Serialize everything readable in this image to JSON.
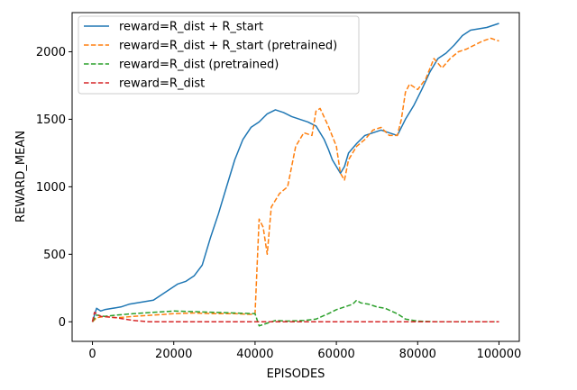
{
  "chart_data": {
    "type": "line",
    "title": "",
    "xlabel": "EPISODES",
    "ylabel": "REWARD_MEAN",
    "xlim": [
      -5000,
      105000
    ],
    "ylim": [
      -145,
      2290
    ],
    "xticks": [
      0,
      20000,
      40000,
      60000,
      80000,
      100000
    ],
    "xtick_labels": [
      "0",
      "20000",
      "40000",
      "60000",
      "80000",
      "100000"
    ],
    "yticks": [
      0,
      500,
      1000,
      1500,
      2000
    ],
    "ytick_labels": [
      "0",
      "500",
      "1000",
      "1500",
      "2000"
    ],
    "grid": false,
    "legend_position": "upper-left",
    "series": [
      {
        "name": "reward=R_dist + R_start",
        "color": "#1f77b4",
        "style": "solid",
        "x": [
          0,
          1000,
          2000,
          3000,
          5000,
          7000,
          9000,
          11000,
          13000,
          15000,
          17000,
          19000,
          21000,
          23000,
          25000,
          27000,
          29000,
          31000,
          33000,
          35000,
          37000,
          39000,
          41000,
          43000,
          45000,
          47000,
          49000,
          51000,
          53000,
          55000,
          57000,
          58000,
          59000,
          60000,
          61000,
          62000,
          63000,
          65000,
          67000,
          69000,
          71000,
          73000,
          75000,
          77000,
          79000,
          81000,
          83000,
          85000,
          87000,
          89000,
          91000,
          93000,
          95000,
          97000,
          99000,
          100000
        ],
        "y": [
          0,
          100,
          80,
          90,
          100,
          110,
          130,
          140,
          150,
          160,
          200,
          240,
          280,
          300,
          340,
          420,
          620,
          800,
          1000,
          1200,
          1350,
          1440,
          1480,
          1540,
          1570,
          1550,
          1520,
          1500,
          1480,
          1450,
          1350,
          1280,
          1200,
          1150,
          1100,
          1150,
          1250,
          1320,
          1380,
          1400,
          1420,
          1400,
          1380,
          1500,
          1600,
          1720,
          1850,
          1950,
          1990,
          2050,
          2120,
          2160,
          2170,
          2180,
          2200,
          2210
        ]
      },
      {
        "name": "reward=R_dist + R_start (pretrained)",
        "color": "#ff7f0e",
        "style": "dashed",
        "x": [
          0,
          1000,
          3000,
          6000,
          10000,
          15000,
          20000,
          25000,
          30000,
          35000,
          39000,
          40000,
          41000,
          42000,
          43000,
          44000,
          46000,
          48000,
          50000,
          51000,
          52000,
          54000,
          55000,
          56000,
          58000,
          60000,
          61000,
          62000,
          63000,
          65000,
          67000,
          69000,
          71000,
          73000,
          75000,
          76000,
          77000,
          78000,
          80000,
          82000,
          84000,
          86000,
          88000,
          90000,
          92000,
          94000,
          96000,
          98000,
          100000
        ],
        "y": [
          0,
          30,
          40,
          30,
          40,
          50,
          60,
          65,
          60,
          60,
          55,
          60,
          760,
          700,
          500,
          850,
          950,
          1000,
          1300,
          1350,
          1400,
          1380,
          1560,
          1580,
          1450,
          1300,
          1100,
          1050,
          1200,
          1300,
          1350,
          1420,
          1440,
          1380,
          1380,
          1500,
          1700,
          1760,
          1720,
          1800,
          1950,
          1880,
          1950,
          2000,
          2020,
          2050,
          2080,
          2100,
          2080
        ]
      },
      {
        "name": "reward=R_dist (pretrained)",
        "color": "#2ca02c",
        "style": "dashed",
        "x": [
          0,
          1000,
          3000,
          6000,
          10000,
          15000,
          20000,
          25000,
          30000,
          35000,
          40000,
          41000,
          42000,
          45000,
          48000,
          52000,
          55000,
          58000,
          60000,
          62000,
          64000,
          65000,
          66000,
          68000,
          70000,
          72000,
          75000,
          77000,
          80000,
          85000,
          90000,
          95000,
          100000
        ],
        "y": [
          0,
          50,
          40,
          50,
          60,
          70,
          80,
          75,
          70,
          65,
          60,
          -30,
          -20,
          10,
          5,
          10,
          20,
          60,
          90,
          110,
          130,
          160,
          140,
          130,
          110,
          100,
          60,
          20,
          5,
          0,
          0,
          0,
          0
        ]
      },
      {
        "name": "reward=R_dist",
        "color": "#d62728",
        "style": "dashed",
        "x": [
          0,
          500,
          1000,
          2000,
          4000,
          6000,
          8000,
          10000,
          12000,
          14000,
          20000,
          30000,
          40000,
          50000,
          60000,
          70000,
          80000,
          90000,
          100000
        ],
        "y": [
          0,
          70,
          60,
          40,
          35,
          30,
          20,
          10,
          5,
          0,
          0,
          0,
          0,
          0,
          0,
          0,
          0,
          0,
          0
        ]
      }
    ]
  }
}
